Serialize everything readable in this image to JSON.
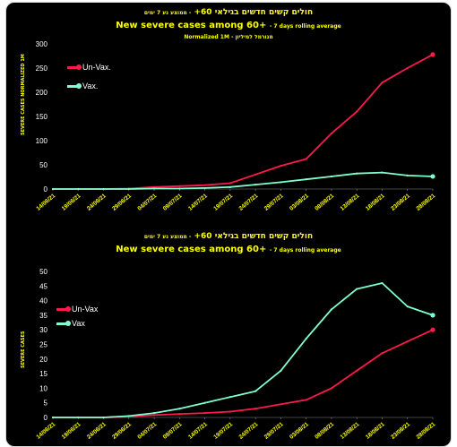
{
  "colors": {
    "unvax": "#ff1a4a",
    "vax": "#7fffd0",
    "text": "#ffff00",
    "background": "#000000"
  },
  "chart_data": [
    {
      "type": "line",
      "title_he": "חולים קשים חדשים בגילאי 60+",
      "title_he_note": "ממוצע נע 7 ימים",
      "title": "New severe cases among 60+",
      "title_note": "7 days rolling average",
      "subtitle": "Normalized 1M - מנורמל למיליון",
      "ylabel": "SEVERE CASES NORMALIZED 1M",
      "xlabel": "",
      "ylim": [
        0,
        300
      ],
      "yticks": [
        0,
        50,
        100,
        150,
        200,
        250,
        300
      ],
      "legend_position": "left",
      "x_ticks": [
        "14/06/21",
        "19/06/21",
        "24/06/21",
        "29/06/21",
        "04/07/21",
        "09/07/21",
        "14/07/21",
        "19/07/21",
        "24/07/21",
        "29/07/21",
        "03/08/21",
        "08/08/21",
        "13/08/21",
        "18/08/21",
        "23/08/21",
        "28/08/21"
      ],
      "x": [
        "14/06/21",
        "19/06/21",
        "24/06/21",
        "29/06/21",
        "04/07/21",
        "09/07/21",
        "14/07/21",
        "19/07/21",
        "24/07/21",
        "29/07/21",
        "03/08/21",
        "08/08/21",
        "13/08/21",
        "18/08/21",
        "23/08/21",
        "28/08/21"
      ],
      "series": [
        {
          "name": "Un-Vax.",
          "values": [
            0,
            0,
            0,
            1,
            4,
            6,
            8,
            12,
            30,
            48,
            62,
            115,
            160,
            220,
            250,
            278
          ]
        },
        {
          "name": "Vax.",
          "values": [
            0,
            0,
            0,
            0,
            1,
            1,
            2,
            4,
            9,
            14,
            20,
            26,
            32,
            34,
            28,
            26
          ]
        }
      ]
    },
    {
      "type": "line",
      "title_he": "חולים קשים חדשים בגילאי 60+",
      "title_he_note": "ממוצע נע 7 ימים",
      "title": "New severe cases among 60+",
      "title_note": "7 days rolling average",
      "ylabel": "SEVERE CASES",
      "xlabel": "",
      "ylim": [
        0,
        50
      ],
      "yticks": [
        0,
        5,
        10,
        15,
        20,
        25,
        30,
        35,
        40,
        45,
        50
      ],
      "legend_position": "left",
      "x_ticks": [
        "14/06/21",
        "19/06/21",
        "24/06/21",
        "29/06/21",
        "04/07/21",
        "09/07/21",
        "14/07/21",
        "19/07/21",
        "24/07/21",
        "29/07/21",
        "03/08/21",
        "08/08/21",
        "13/08/21",
        "18/08/21",
        "23/08/21",
        "28/08/21"
      ],
      "x": [
        "14/06/21",
        "19/06/21",
        "24/06/21",
        "29/06/21",
        "04/07/21",
        "09/07/21",
        "14/07/21",
        "19/07/21",
        "24/07/21",
        "29/07/21",
        "03/08/21",
        "08/08/21",
        "13/08/21",
        "18/08/21",
        "23/08/21",
        "28/08/21"
      ],
      "series": [
        {
          "name": "Un-Vax",
          "values": [
            0,
            0,
            0,
            0.3,
            0.8,
            1.2,
            1.5,
            2,
            3,
            4.5,
            6,
            10,
            16,
            22,
            26,
            30
          ]
        },
        {
          "name": "Vax",
          "values": [
            0,
            0,
            0,
            0.5,
            1.5,
            3,
            5,
            7,
            9,
            16,
            27,
            37,
            44,
            46,
            38,
            35
          ]
        }
      ]
    }
  ]
}
